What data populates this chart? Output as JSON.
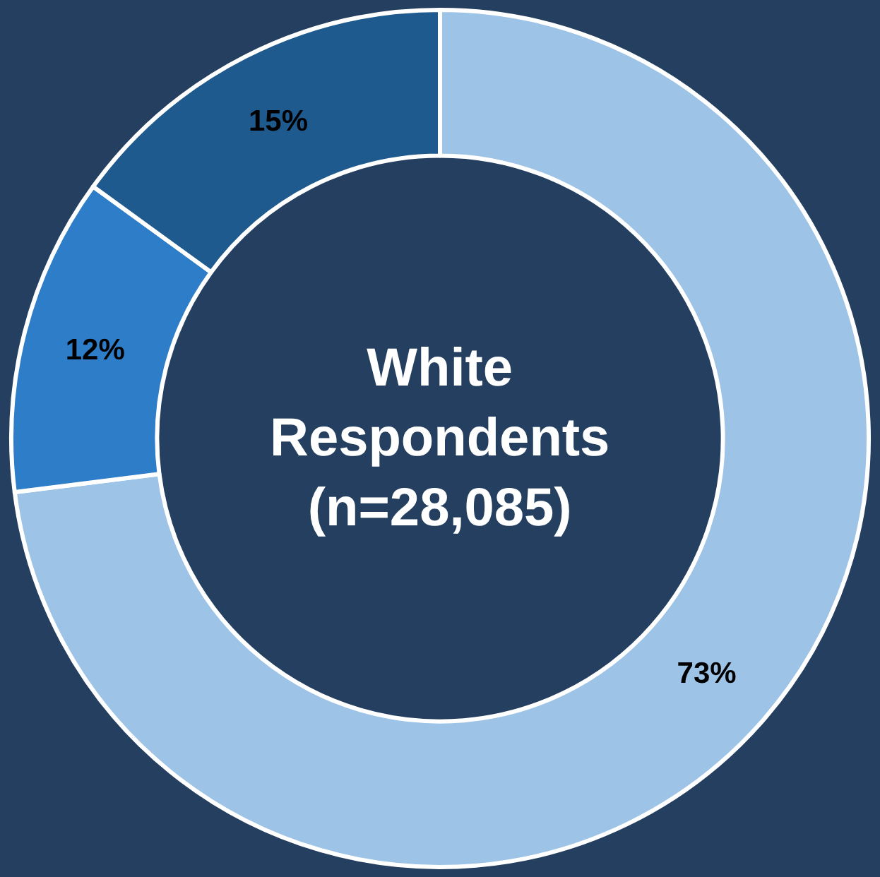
{
  "chart_data": {
    "type": "donut",
    "title": "White\nRespondents\n(n=28,085)",
    "categories": [
      null,
      null,
      null
    ],
    "values": [
      73,
      12,
      15
    ],
    "value_labels": [
      "73%",
      "12%",
      "15%"
    ],
    "colors": [
      "#9dc3e6",
      "#2e7dc8",
      "#1f5a8f"
    ],
    "legend": false
  }
}
